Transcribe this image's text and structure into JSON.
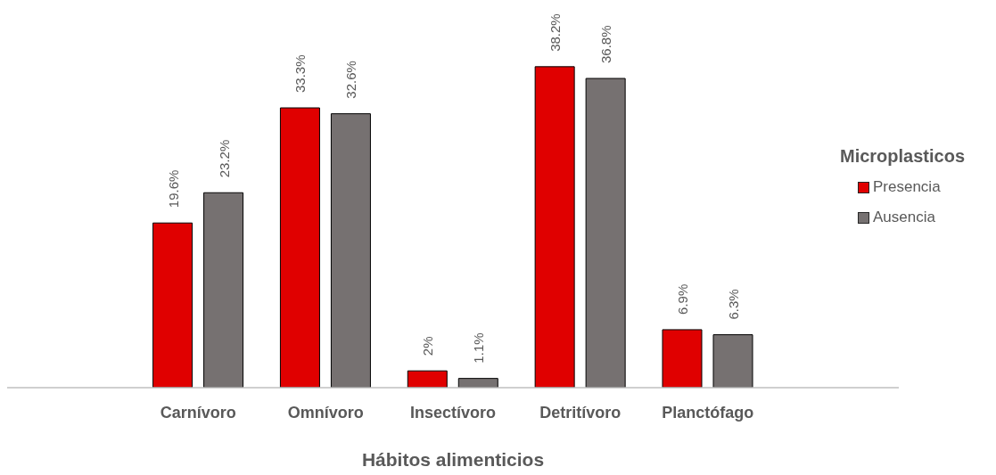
{
  "chart_data": {
    "type": "bar",
    "xlabel": "Hábitos alimenticios",
    "legend_title": "Microplasticos",
    "legend": "right",
    "categories": [
      null,
      "Carnívoro",
      "Omnívoro",
      "Insectívoro",
      "Detritívoro",
      "Planctófago",
      null
    ],
    "series": [
      {
        "name": "Presencia",
        "color": "#e00000",
        "values": [
          null,
          19.6,
          33.3,
          2,
          38.2,
          6.9,
          null
        ],
        "value_labels": [
          null,
          "19.6%",
          "33.3%",
          "2%",
          "38.2%",
          "6.9%",
          null
        ]
      },
      {
        "name": "Ausencia",
        "color": "#767171",
        "values": [
          null,
          23.2,
          32.6,
          1.1,
          36.8,
          6.3,
          null
        ],
        "value_labels": [
          null,
          "23.2%",
          "32.6%",
          "1.1%",
          "36.8%",
          "6.3%",
          null
        ]
      }
    ]
  }
}
